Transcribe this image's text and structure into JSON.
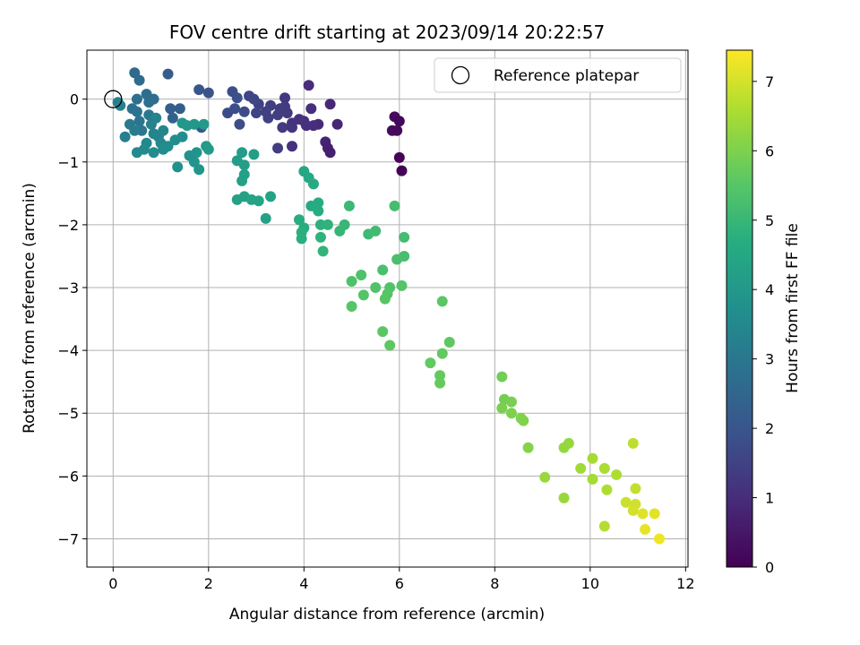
{
  "chart_data": {
    "type": "scatter",
    "title": "FOV centre drift starting at 2023/09/14 20:22:57",
    "xlabel": "Angular distance from reference (arcmin)",
    "ylabel": "Rotation from reference (arcmin)",
    "xlim": [
      -0.55,
      12.05
    ],
    "ylim": [
      -7.45,
      0.78
    ],
    "xticks": [
      0,
      2,
      4,
      6,
      8,
      10,
      12
    ],
    "yticks": [
      0,
      -1,
      -2,
      -3,
      -4,
      -5,
      -6,
      -7
    ],
    "xtick_labels": [
      "0",
      "2",
      "4",
      "6",
      "8",
      "10",
      "12"
    ],
    "ytick_labels": [
      "0",
      "−1",
      "−2",
      "−3",
      "−4",
      "−5",
      "−6",
      "−7"
    ],
    "grid": true,
    "legend": {
      "position": "top-right",
      "label": "Reference platepar"
    },
    "reference_point": {
      "x": 0,
      "y": 0
    },
    "colormap": "viridis",
    "colorbar": {
      "label": "Hours from first FF file",
      "range": [
        0,
        7.45
      ],
      "ticks": [
        0,
        1,
        2,
        3,
        4,
        5,
        6,
        7
      ],
      "tick_labels": [
        "0",
        "1",
        "2",
        "3",
        "4",
        "5",
        "6",
        "7"
      ]
    },
    "points": [
      {
        "x": 5.9,
        "y": -0.28,
        "t": 0.2
      },
      {
        "x": 6.0,
        "y": -0.35,
        "t": 0.15
      },
      {
        "x": 5.85,
        "y": -0.5,
        "t": 0.25
      },
      {
        "x": 5.95,
        "y": -0.5,
        "t": 0.2
      },
      {
        "x": 6.0,
        "y": -0.93,
        "t": 0.1
      },
      {
        "x": 6.05,
        "y": -1.14,
        "t": 0.05
      },
      {
        "x": 4.1,
        "y": 0.22,
        "t": 1.0
      },
      {
        "x": 4.55,
        "y": -0.08,
        "t": 0.9
      },
      {
        "x": 4.7,
        "y": -0.4,
        "t": 0.85
      },
      {
        "x": 4.3,
        "y": -0.4,
        "t": 0.95
      },
      {
        "x": 4.2,
        "y": -0.42,
        "t": 1.0
      },
      {
        "x": 4.05,
        "y": -0.42,
        "t": 1.05
      },
      {
        "x": 4.0,
        "y": -0.35,
        "t": 1.1
      },
      {
        "x": 4.15,
        "y": -0.15,
        "t": 1.05
      },
      {
        "x": 4.45,
        "y": -0.68,
        "t": 0.8
      },
      {
        "x": 4.5,
        "y": -0.78,
        "t": 0.75
      },
      {
        "x": 4.55,
        "y": -0.85,
        "t": 0.7
      },
      {
        "x": 3.75,
        "y": -0.75,
        "t": 1.1
      },
      {
        "x": 3.75,
        "y": -0.38,
        "t": 1.15
      },
      {
        "x": 3.9,
        "y": -0.32,
        "t": 1.15
      },
      {
        "x": 3.6,
        "y": 0.02,
        "t": 1.25
      },
      {
        "x": 3.6,
        "y": -0.12,
        "t": 1.3
      },
      {
        "x": 3.65,
        "y": -0.22,
        "t": 1.3
      },
      {
        "x": 3.5,
        "y": -0.15,
        "t": 1.35
      },
      {
        "x": 3.3,
        "y": -0.1,
        "t": 1.4
      },
      {
        "x": 3.2,
        "y": -0.2,
        "t": 1.45
      },
      {
        "x": 3.25,
        "y": -0.3,
        "t": 1.45
      },
      {
        "x": 3.45,
        "y": -0.25,
        "t": 1.4
      },
      {
        "x": 3.45,
        "y": -0.78,
        "t": 1.35
      },
      {
        "x": 3.55,
        "y": -0.45,
        "t": 1.3
      },
      {
        "x": 3.05,
        "y": -0.08,
        "t": 1.5
      },
      {
        "x": 3.0,
        "y": -0.22,
        "t": 1.55
      },
      {
        "x": 2.85,
        "y": 0.05,
        "t": 1.6
      },
      {
        "x": 2.95,
        "y": 0.0,
        "t": 1.6
      },
      {
        "x": 3.75,
        "y": -0.45,
        "t": 1.2
      },
      {
        "x": 2.4,
        "y": -0.22,
        "t": 1.75
      },
      {
        "x": 2.5,
        "y": 0.12,
        "t": 1.8
      },
      {
        "x": 2.55,
        "y": -0.15,
        "t": 1.8
      },
      {
        "x": 2.6,
        "y": 0.02,
        "t": 1.85
      },
      {
        "x": 2.65,
        "y": -0.4,
        "t": 1.8
      },
      {
        "x": 2.75,
        "y": -0.2,
        "t": 1.75
      },
      {
        "x": 2.0,
        "y": 0.1,
        "t": 1.95
      },
      {
        "x": 1.8,
        "y": 0.15,
        "t": 2.0
      },
      {
        "x": 1.85,
        "y": -0.45,
        "t": 2.05
      },
      {
        "x": 1.15,
        "y": 0.4,
        "t": 2.2
      },
      {
        "x": 1.2,
        "y": -0.15,
        "t": 2.25
      },
      {
        "x": 1.4,
        "y": -0.15,
        "t": 2.3
      },
      {
        "x": 1.25,
        "y": -0.3,
        "t": 2.35
      },
      {
        "x": 0.45,
        "y": 0.42,
        "t": 2.6
      },
      {
        "x": 0.55,
        "y": 0.3,
        "t": 2.65
      },
      {
        "x": 0.5,
        "y": 0.0,
        "t": 2.8
      },
      {
        "x": 0.4,
        "y": -0.15,
        "t": 2.85
      },
      {
        "x": 0.5,
        "y": -0.2,
        "t": 2.9
      },
      {
        "x": 0.7,
        "y": 0.08,
        "t": 2.75
      },
      {
        "x": 0.85,
        "y": 0.0,
        "t": 2.7
      },
      {
        "x": 0.75,
        "y": -0.05,
        "t": 2.8
      },
      {
        "x": 0.55,
        "y": -0.35,
        "t": 2.95
      },
      {
        "x": 0.6,
        "y": -0.5,
        "t": 3.0
      },
      {
        "x": 0.75,
        "y": -0.25,
        "t": 3.05
      },
      {
        "x": 0.35,
        "y": -0.4,
        "t": 3.1
      },
      {
        "x": 0.45,
        "y": -0.5,
        "t": 3.15
      },
      {
        "x": 0.25,
        "y": -0.6,
        "t": 3.2
      },
      {
        "x": 0.1,
        "y": -0.05,
        "t": 3.25
      },
      {
        "x": 0.15,
        "y": -0.1,
        "t": 3.25
      },
      {
        "x": 0.8,
        "y": -0.4,
        "t": 3.3
      },
      {
        "x": 0.9,
        "y": -0.3,
        "t": 3.35
      },
      {
        "x": 0.85,
        "y": -0.55,
        "t": 3.35
      },
      {
        "x": 0.95,
        "y": -0.6,
        "t": 3.4
      },
      {
        "x": 1.05,
        "y": -0.5,
        "t": 3.45
      },
      {
        "x": 1.0,
        "y": -0.7,
        "t": 3.5
      },
      {
        "x": 0.7,
        "y": -0.7,
        "t": 3.5
      },
      {
        "x": 0.65,
        "y": -0.8,
        "t": 3.55
      },
      {
        "x": 0.5,
        "y": -0.85,
        "t": 3.55
      },
      {
        "x": 0.85,
        "y": -0.85,
        "t": 3.6
      },
      {
        "x": 1.05,
        "y": -0.8,
        "t": 3.6
      },
      {
        "x": 1.15,
        "y": -0.75,
        "t": 3.65
      },
      {
        "x": 1.3,
        "y": -0.65,
        "t": 3.65
      },
      {
        "x": 1.45,
        "y": -0.6,
        "t": 3.7
      },
      {
        "x": 1.35,
        "y": -1.08,
        "t": 3.75
      },
      {
        "x": 1.6,
        "y": -0.9,
        "t": 3.8
      },
      {
        "x": 1.7,
        "y": -1.0,
        "t": 3.85
      },
      {
        "x": 1.75,
        "y": -0.85,
        "t": 3.85
      },
      {
        "x": 1.8,
        "y": -1.12,
        "t": 3.9
      },
      {
        "x": 1.45,
        "y": -0.38,
        "t": 3.95
      },
      {
        "x": 1.55,
        "y": -0.42,
        "t": 4.0
      },
      {
        "x": 1.7,
        "y": -0.4,
        "t": 4.0
      },
      {
        "x": 1.9,
        "y": -0.4,
        "t": 4.05
      },
      {
        "x": 1.95,
        "y": -0.75,
        "t": 4.05
      },
      {
        "x": 2.0,
        "y": -0.8,
        "t": 4.1
      },
      {
        "x": 2.6,
        "y": -0.98,
        "t": 4.15
      },
      {
        "x": 2.7,
        "y": -0.85,
        "t": 4.15
      },
      {
        "x": 2.75,
        "y": -1.05,
        "t": 4.2
      },
      {
        "x": 2.95,
        "y": -0.88,
        "t": 4.2
      },
      {
        "x": 2.7,
        "y": -1.3,
        "t": 4.25
      },
      {
        "x": 2.75,
        "y": -1.2,
        "t": 4.25
      },
      {
        "x": 2.6,
        "y": -1.6,
        "t": 4.3
      },
      {
        "x": 2.75,
        "y": -1.55,
        "t": 4.3
      },
      {
        "x": 2.9,
        "y": -1.6,
        "t": 4.35
      },
      {
        "x": 3.05,
        "y": -1.62,
        "t": 4.35
      },
      {
        "x": 3.2,
        "y": -1.9,
        "t": 4.3
      },
      {
        "x": 3.3,
        "y": -1.55,
        "t": 4.4
      },
      {
        "x": 4.0,
        "y": -1.15,
        "t": 4.5
      },
      {
        "x": 4.1,
        "y": -1.25,
        "t": 4.55
      },
      {
        "x": 4.2,
        "y": -1.35,
        "t": 4.6
      },
      {
        "x": 4.15,
        "y": -1.7,
        "t": 4.6
      },
      {
        "x": 4.3,
        "y": -1.65,
        "t": 4.65
      },
      {
        "x": 4.3,
        "y": -1.78,
        "t": 4.65
      },
      {
        "x": 3.9,
        "y": -1.92,
        "t": 4.7
      },
      {
        "x": 4.0,
        "y": -2.05,
        "t": 4.7
      },
      {
        "x": 3.95,
        "y": -2.12,
        "t": 4.75
      },
      {
        "x": 3.95,
        "y": -2.22,
        "t": 4.75
      },
      {
        "x": 4.35,
        "y": -2.0,
        "t": 4.8
      },
      {
        "x": 4.5,
        "y": -2.0,
        "t": 4.85
      },
      {
        "x": 4.35,
        "y": -2.2,
        "t": 4.85
      },
      {
        "x": 4.4,
        "y": -2.42,
        "t": 4.9
      },
      {
        "x": 4.75,
        "y": -2.1,
        "t": 4.95
      },
      {
        "x": 4.85,
        "y": -2.0,
        "t": 5.0
      },
      {
        "x": 4.95,
        "y": -1.7,
        "t": 5.05
      },
      {
        "x": 5.35,
        "y": -2.15,
        "t": 5.1
      },
      {
        "x": 5.5,
        "y": -2.1,
        "t": 5.15
      },
      {
        "x": 5.9,
        "y": -1.7,
        "t": 5.2
      },
      {
        "x": 6.1,
        "y": -2.2,
        "t": 5.2
      },
      {
        "x": 6.1,
        "y": -2.5,
        "t": 5.25
      },
      {
        "x": 5.95,
        "y": -2.55,
        "t": 5.3
      },
      {
        "x": 5.65,
        "y": -2.72,
        "t": 5.3
      },
      {
        "x": 5.2,
        "y": -2.8,
        "t": 5.35
      },
      {
        "x": 5.0,
        "y": -2.9,
        "t": 5.35
      },
      {
        "x": 5.5,
        "y": -3.0,
        "t": 5.4
      },
      {
        "x": 5.8,
        "y": -3.0,
        "t": 5.4
      },
      {
        "x": 6.05,
        "y": -2.97,
        "t": 5.45
      },
      {
        "x": 5.25,
        "y": -3.12,
        "t": 5.45
      },
      {
        "x": 5.75,
        "y": -3.1,
        "t": 5.5
      },
      {
        "x": 5.7,
        "y": -3.18,
        "t": 5.5
      },
      {
        "x": 5.0,
        "y": -3.3,
        "t": 5.5
      },
      {
        "x": 6.9,
        "y": -3.22,
        "t": 5.55
      },
      {
        "x": 5.65,
        "y": -3.7,
        "t": 5.55
      },
      {
        "x": 5.8,
        "y": -3.92,
        "t": 5.6
      },
      {
        "x": 7.05,
        "y": -3.87,
        "t": 5.6
      },
      {
        "x": 6.9,
        "y": -4.05,
        "t": 5.65
      },
      {
        "x": 6.65,
        "y": -4.2,
        "t": 5.65
      },
      {
        "x": 6.85,
        "y": -4.4,
        "t": 5.7
      },
      {
        "x": 6.85,
        "y": -4.52,
        "t": 5.7
      },
      {
        "x": 8.15,
        "y": -4.42,
        "t": 5.85
      },
      {
        "x": 8.2,
        "y": -4.78,
        "t": 5.9
      },
      {
        "x": 8.35,
        "y": -4.82,
        "t": 5.95
      },
      {
        "x": 8.15,
        "y": -4.92,
        "t": 5.95
      },
      {
        "x": 8.35,
        "y": -5.0,
        "t": 6.0
      },
      {
        "x": 8.55,
        "y": -5.08,
        "t": 6.05
      },
      {
        "x": 8.6,
        "y": -5.12,
        "t": 6.05
      },
      {
        "x": 8.7,
        "y": -5.55,
        "t": 6.1
      },
      {
        "x": 9.55,
        "y": -5.48,
        "t": 6.3
      },
      {
        "x": 9.45,
        "y": -5.55,
        "t": 6.3
      },
      {
        "x": 9.05,
        "y": -6.02,
        "t": 6.35
      },
      {
        "x": 9.45,
        "y": -6.35,
        "t": 6.35
      },
      {
        "x": 9.8,
        "y": -5.88,
        "t": 6.45
      },
      {
        "x": 10.05,
        "y": -5.72,
        "t": 6.5
      },
      {
        "x": 10.05,
        "y": -6.05,
        "t": 6.5
      },
      {
        "x": 10.3,
        "y": -5.88,
        "t": 6.55
      },
      {
        "x": 10.35,
        "y": -6.22,
        "t": 6.6
      },
      {
        "x": 10.55,
        "y": -5.98,
        "t": 6.6
      },
      {
        "x": 10.3,
        "y": -6.8,
        "t": 6.65
      },
      {
        "x": 10.9,
        "y": -5.48,
        "t": 6.75
      },
      {
        "x": 10.95,
        "y": -6.2,
        "t": 6.8
      },
      {
        "x": 10.75,
        "y": -6.42,
        "t": 6.9
      },
      {
        "x": 10.95,
        "y": -6.45,
        "t": 6.95
      },
      {
        "x": 10.9,
        "y": -6.55,
        "t": 7.0
      },
      {
        "x": 11.1,
        "y": -6.6,
        "t": 7.1
      },
      {
        "x": 11.35,
        "y": -6.6,
        "t": 7.15
      },
      {
        "x": 11.15,
        "y": -6.85,
        "t": 7.2
      },
      {
        "x": 11.45,
        "y": -7.0,
        "t": 7.3
      }
    ]
  }
}
